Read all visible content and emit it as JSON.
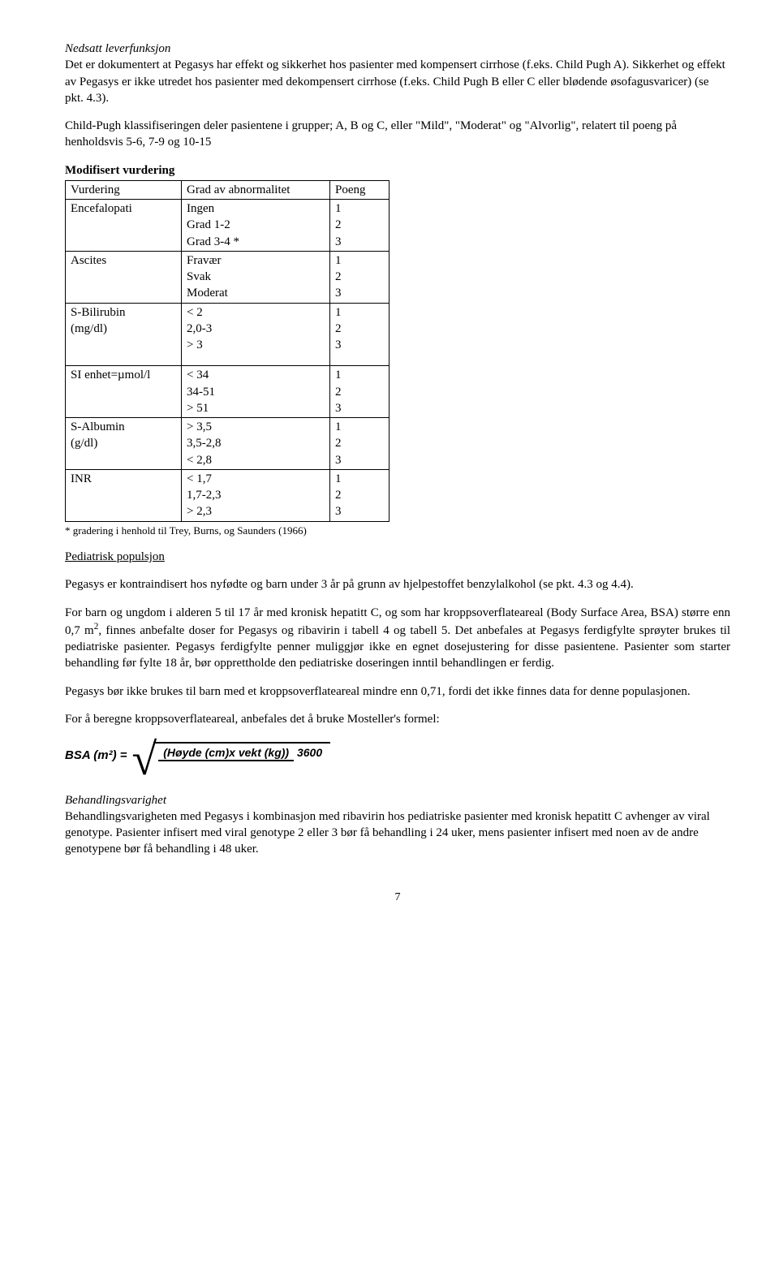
{
  "section1": {
    "heading": "Nedsatt leverfunksjon",
    "p1": "Det er dokumentert at Pegasys har effekt og sikkerhet hos pasienter med kompensert cirrhose (f.eks. Child Pugh A). Sikkerhet og effekt av Pegasys er ikke utredet hos pasienter med dekompensert cirrhose (f.eks. Child Pugh B eller C eller blødende øsofagusvaricer) (se pkt. 4.3).",
    "p2": "Child-Pugh klassifiseringen deler pasientene i grupper; A, B og C, eller \"Mild\", \"Moderat\" og \"Alvorlig\", relatert til poeng på henholdsvis 5-6, 7-9 og 10-15"
  },
  "table": {
    "title": "Modifisert vurdering",
    "headers": {
      "c1": "Vurdering",
      "c2": "Grad av abnormalitet",
      "c3": "Poeng"
    },
    "rows": [
      {
        "c1": "Encefalopati",
        "c2a": "Ingen",
        "c2b": "Grad 1-2",
        "c2c": "Grad 3-4 *",
        "p1": "1",
        "p2": "2",
        "p3": "3"
      },
      {
        "c1": "Ascites",
        "c2a": "Fravær",
        "c2b": "Svak",
        "c2c": "Moderat",
        "p1": "1",
        "p2": "2",
        "p3": "3"
      },
      {
        "c1a": "S-Bilirubin",
        "c1b": "(mg/dl)",
        "c2a": "< 2",
        "c2b": "2,0-3",
        "c2c": "> 3",
        "p1": "1",
        "p2": "2",
        "p3": "3",
        "blank": true
      },
      {
        "c1": "SI enhet=µmol/l",
        "c2a": "< 34",
        "c2b": "34-51",
        "c2c": "> 51",
        "p1": "1",
        "p2": "2",
        "p3": "3"
      },
      {
        "c1a": "S-Albumin",
        "c1b": "(g/dl)",
        "c2a": "> 3,5",
        "c2b": "3,5-2,8",
        "c2c": "< 2,8",
        "p1": "1",
        "p2": "2",
        "p3": "3"
      },
      {
        "c1": "INR",
        "c2a": "< 1,7",
        "c2b": "1,7-2,3",
        "c2c": "> 2,3",
        "p1": "1",
        "p2": "2",
        "p3": "3"
      }
    ],
    "footnote": "* gradering i henhold til Trey, Burns, og Saunders (1966)"
  },
  "section2": {
    "heading": "Pediatrisk populsjon",
    "p1": "Pegasys er kontraindisert hos nyfødte og barn under 3 år på grunn av hjelpestoffet benzylalkohol (se pkt. 4.3 og 4.4).",
    "p2a": "For barn og ungdom i alderen 5 til 17 år med kronisk hepatitt C, og som har kroppsoverflateareal (Body Surface Area, BSA) større enn 0,7 m",
    "p2b": ", finnes anbefalte doser for Pegasys og ribavirin i tabell 4 og tabell 5. Det anbefales at Pegasys ferdigfylte sprøyter brukes til pediatriske pasienter. Pegasys ferdigfylte penner muliggjør ikke en egnet dosejustering for disse pasientene. Pasienter som starter behandling før fylte 18 år, bør opprettholde den pediatriske doseringen inntil behandlingen er ferdig.",
    "p3": "Pegasys bør ikke brukes til barn med et kroppsoverflateareal mindre enn 0,71, fordi det ikke finnes data for denne populasjonen.",
    "p4": "For å beregne kroppsoverflateareal, anbefales det å bruke Mosteller's formel:"
  },
  "formula": {
    "lhs": "BSA (m²) =",
    "num": "(Høyde (cm)x vekt (kg))",
    "den": "3600"
  },
  "section3": {
    "heading": "Behandlingsvarighet",
    "p1": "Behandlingsvarigheten med Pegasys i kombinasjon med ribavirin hos pediatriske pasienter med kronisk hepatitt C avhenger av viral genotype. Pasienter infisert med viral genotype 2 eller 3 bør få behandling i 24 uker, mens pasienter infisert med noen av de andre genotypene bør få behandling i 48 uker."
  },
  "pageNumber": "7"
}
